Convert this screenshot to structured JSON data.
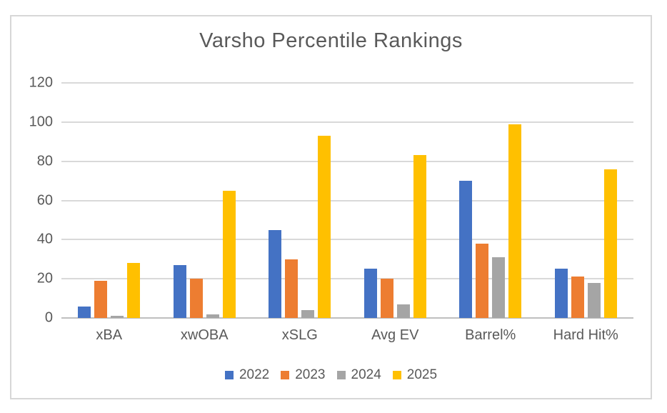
{
  "chart_data": {
    "type": "bar",
    "title": "Varsho Percentile Rankings",
    "categories": [
      "xBA",
      "xwOBA",
      "xSLG",
      "Avg EV",
      "Barrel%",
      "Hard Hit%"
    ],
    "series": [
      {
        "name": "2022",
        "color": "#4472C4",
        "values": [
          6,
          27,
          45,
          25,
          70,
          25
        ]
      },
      {
        "name": "2023",
        "color": "#ED7D31",
        "values": [
          19,
          20,
          30,
          20,
          38,
          21
        ]
      },
      {
        "name": "2024",
        "color": "#A5A5A5",
        "values": [
          1,
          2,
          4,
          7,
          31,
          18
        ]
      },
      {
        "name": "2025",
        "color": "#FFC000",
        "values": [
          28,
          65,
          93,
          83,
          99,
          76
        ]
      }
    ],
    "xlabel": "",
    "ylabel": "",
    "ylim": [
      0,
      120
    ],
    "yticks": [
      0,
      20,
      40,
      60,
      80,
      100,
      120
    ],
    "grid": true,
    "legend_position": "bottom",
    "colors": {
      "text": "#595959",
      "gridline": "#D9D9D9",
      "axis_line": "#BFBFBF",
      "border": "#D7D7D7",
      "background": "#FFFFFF"
    }
  }
}
